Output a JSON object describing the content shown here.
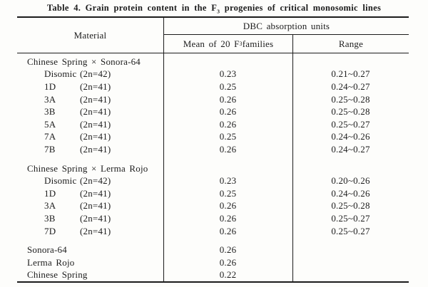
{
  "title": {
    "pre": "Table 4. Grain protein content in the F",
    "sub": "3",
    "post": " progenies of critical monosomic lines"
  },
  "header": {
    "material": "Material",
    "dbc": "DBC absorption units",
    "mean_pre": "Mean of 20 F",
    "mean_sub": "3",
    "mean_post": " families",
    "range": "Range"
  },
  "rows": [
    {
      "type": "group",
      "label": "Chinese Spring × Sonora-64"
    },
    {
      "type": "item",
      "label": "Disomic",
      "karyotype": "(2n=42)",
      "mean": "0.23",
      "range": "0.21~0.27"
    },
    {
      "type": "item",
      "label": "1D",
      "karyotype": "(2n=41)",
      "mean": "0.25",
      "range": "0.24~0.27"
    },
    {
      "type": "item",
      "label": "3A",
      "karyotype": "(2n=41)",
      "mean": "0.26",
      "range": "0.25~0.28"
    },
    {
      "type": "item",
      "label": "3B",
      "karyotype": "(2n=41)",
      "mean": "0.26",
      "range": "0.25~0.28"
    },
    {
      "type": "item",
      "label": "5A",
      "karyotype": "(2n=41)",
      "mean": "0.26",
      "range": "0.25~0.27"
    },
    {
      "type": "item",
      "label": "7A",
      "karyotype": "(2n=41)",
      "mean": "0.25",
      "range": "0.24~0.26"
    },
    {
      "type": "item",
      "label": "7B",
      "karyotype": "(2n=41)",
      "mean": "0.26",
      "range": "0.24~0.27"
    },
    {
      "type": "group",
      "label": "Chinese Spring × Lerma Rojo",
      "gap_before": true
    },
    {
      "type": "item",
      "label": "Disomic",
      "karyotype": "(2n=42)",
      "mean": "0.23",
      "range": "0.20~0.26"
    },
    {
      "type": "item",
      "label": "1D",
      "karyotype": "(2n=41)",
      "mean": "0.25",
      "range": "0.24~0.26"
    },
    {
      "type": "item",
      "label": "3A",
      "karyotype": "(2n=41)",
      "mean": "0.26",
      "range": "0.25~0.28"
    },
    {
      "type": "item",
      "label": "3B",
      "karyotype": "(2n=41)",
      "mean": "0.26",
      "range": "0.25~0.27"
    },
    {
      "type": "item",
      "label": "7D",
      "karyotype": "(2n=41)",
      "mean": "0.26",
      "range": "0.25~0.27"
    },
    {
      "type": "plain",
      "label": "Sonora-64",
      "mean": "0.26",
      "range": "",
      "gap_before": true
    },
    {
      "type": "plain",
      "label": "Lerma Rojo",
      "mean": "0.26",
      "range": ""
    },
    {
      "type": "plain",
      "label": "Chinese Spring",
      "mean": "0.22",
      "range": ""
    }
  ],
  "colors": {
    "ink": "#1c1c1c",
    "paper": "#fdfdfb"
  }
}
